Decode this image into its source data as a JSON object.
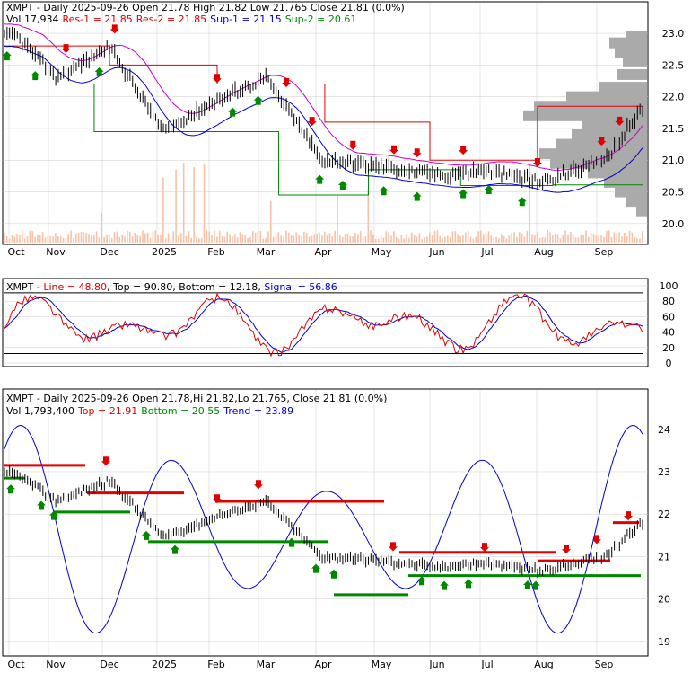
{
  "colors": {
    "red": "#e00000",
    "green": "#008800",
    "blue": "#0000cc",
    "magenta": "#cc00cc",
    "black": "#000000",
    "volume": "#f7c2a8",
    "profile": "#aaaaaa",
    "grid": "#cccccc"
  },
  "panel1": {
    "symbol": "XMPT",
    "title": "XMPT - Daily 2025-09-26 Open 21.78  High 21.82  Low 21.765  Close 21.81 (0.0%)",
    "vol_label": "Vol 17,934",
    "res1": "Res-1 = 21.85",
    "res2": "Res-2 = 21.85",
    "sup1": "Sup-1 = 21.15",
    "sup2": "Sup-2 = 20.61"
  },
  "panel2": {
    "symbol": "XMPT",
    "line": "Line = 48.80",
    "top": "Top = 90.80",
    "bottom": "Bottom = 12.18",
    "signal": "Signal = 56.86"
  },
  "panel3": {
    "title": "XMPT - Daily 2025-09-26 Open 21.78,Hi 21.82,Lo 21.765, Close 21.81 (0.0%)",
    "vol_label": "Vol 1,793,400",
    "top": "Top = 21.91",
    "bottom": "Bottom = 20.55",
    "trend": "Trend = 23.89"
  },
  "x_labels": [
    "Oct",
    "Nov",
    "Dec",
    "2025",
    "Feb",
    "Mar",
    "Apr",
    "May",
    "Jun",
    "Jul",
    "Aug",
    "Sep"
  ],
  "chart_data": [
    {
      "type": "line",
      "name": "price-chart",
      "ylim": [
        19.7,
        23.1
      ],
      "y_ticks": [
        "23.0",
        "22.5",
        "22.0",
        "21.5",
        "21.0",
        "20.5",
        "20.0"
      ],
      "months": [
        "Oct",
        "Nov",
        "Dec",
        "2025",
        "Feb",
        "Mar",
        "Apr",
        "May",
        "Jun",
        "Jul",
        "Aug",
        "Sep"
      ],
      "close_month_start": [
        22.95,
        22.3,
        22.8,
        21.45,
        21.95,
        22.3,
        21.0,
        20.9,
        20.75,
        20.85,
        20.65,
        21.0
      ],
      "close_end": 21.81,
      "resistance_levels": [
        22.8,
        22.5,
        22.2,
        21.6,
        21.0,
        21.85
      ],
      "support_levels": [
        22.2,
        21.45,
        21.45,
        20.45,
        20.85,
        20.6,
        20.61
      ]
    },
    {
      "type": "line",
      "name": "oscillator",
      "ylim": [
        0,
        100
      ],
      "y_ticks": [
        "100",
        "80",
        "60",
        "40",
        "20",
        "0"
      ],
      "line_value": 48.8,
      "top": 90.8,
      "bottom": 12.18,
      "signal_value": 56.86
    },
    {
      "type": "line",
      "name": "trend-chart",
      "ylim": [
        18.7,
        24.8
      ],
      "y_ticks": [
        "24",
        "23",
        "22",
        "21",
        "20",
        "19"
      ],
      "top": 21.91,
      "bottom": 20.55,
      "trend": 23.89
    }
  ]
}
